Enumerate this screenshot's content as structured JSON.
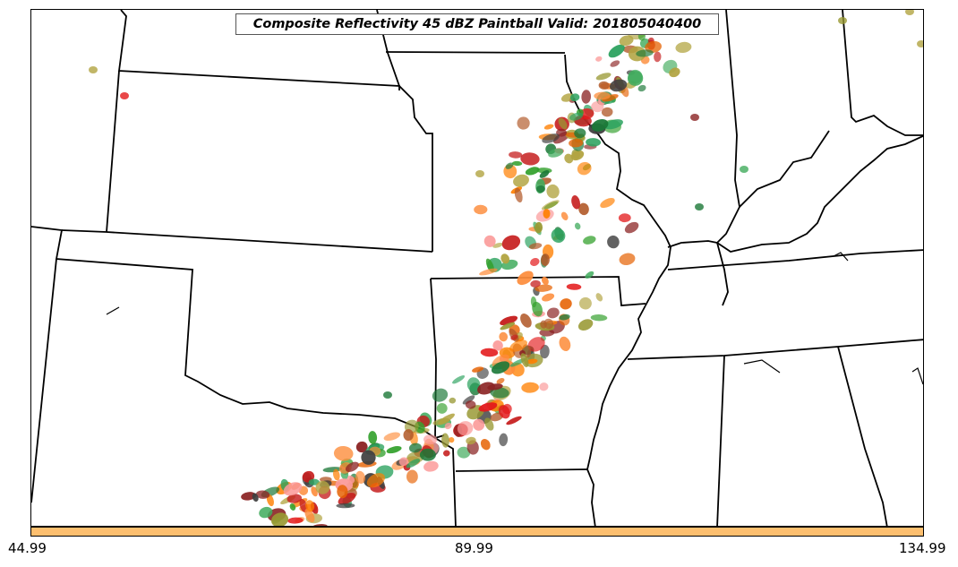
{
  "title": "Composite Reflectivity 45 dBZ Paintball Valid: 201805040400",
  "colorbar": {
    "color": "#fdbf6f",
    "ticks": [
      "44.99",
      "89.99",
      "134.99"
    ]
  },
  "colors": {
    "border": "#000000",
    "paintball": [
      "#e31a1c",
      "#fb9a99",
      "#33a02c",
      "#1b7837",
      "#ff7f00",
      "#b2a441",
      "#8b2323",
      "#404040",
      "#e66101",
      "#2ca25f",
      "#c51b1b",
      "#999933",
      "#fd8d3c",
      "#41ab5d",
      "#b15928"
    ]
  }
}
